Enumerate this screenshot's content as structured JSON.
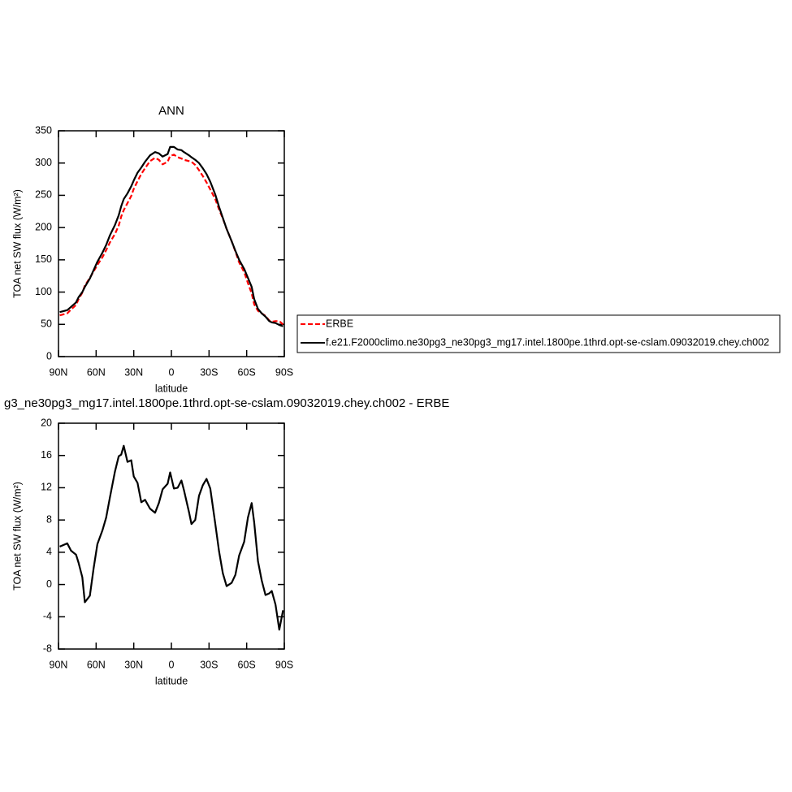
{
  "chart_data": [
    {
      "type": "line",
      "title": "ANN",
      "x_label": "latitude",
      "y_label": "TOA net SW flux (W/m²)",
      "x": [
        89,
        83,
        80,
        76,
        74,
        71,
        69,
        65,
        62,
        59,
        55,
        52,
        49,
        45,
        42,
        40,
        38,
        35,
        32,
        30,
        27,
        24,
        21,
        17,
        13,
        10,
        7,
        3,
        1,
        -2,
        -5,
        -8,
        -10,
        -14,
        -16,
        -19,
        -22,
        -25,
        -28,
        -31,
        -35,
        -38,
        -41,
        -44,
        -48,
        -51,
        -54,
        -58,
        -61,
        -64,
        -66,
        -69,
        -72,
        -75,
        -78,
        -80,
        -83,
        -86,
        -89
      ],
      "series": [
        {
          "name": "ERBE",
          "color": "#ff0000",
          "style": "dashed",
          "values": [
            64,
            67,
            73,
            80,
            89,
            99,
            110,
            122,
            132,
            142,
            154,
            165,
            177,
            190,
            203,
            217,
            227,
            238,
            249,
            260,
            272,
            283,
            292,
            303,
            308,
            305,
            298,
            302,
            311,
            313,
            309,
            307,
            305,
            303,
            302,
            297,
            289,
            280,
            270,
            259,
            244,
            228,
            214,
            198,
            179,
            163,
            146,
            131,
            114,
            98,
            81,
            71,
            67,
            63,
            56,
            54,
            55,
            55,
            50
          ]
        },
        {
          "name": "f.e21.F2000climo.ne30pg3_ne30pg3_mg17.intel.1800pe.1thrd.opt-se-cslam.09032019.chey.ch002",
          "color": "#000000",
          "style": "solid",
          "values": [
            69,
            72,
            77,
            84,
            92,
            100,
            108,
            121,
            134,
            147,
            161,
            173,
            188,
            204,
            219,
            233,
            244,
            253,
            264,
            273,
            285,
            293,
            302,
            312,
            317,
            315,
            310,
            314,
            325,
            325,
            321,
            320,
            317,
            312,
            309,
            305,
            300,
            292,
            283,
            271,
            251,
            232,
            215,
            198,
            179,
            164,
            150,
            136,
            122,
            108,
            89,
            74,
            67,
            62,
            55,
            53,
            52,
            49,
            47
          ]
        }
      ],
      "xlim": [
        90,
        -90
      ],
      "xticks": [
        {
          "value": 90,
          "label": "90N"
        },
        {
          "value": 60,
          "label": "60N"
        },
        {
          "value": 30,
          "label": "30N"
        },
        0,
        {
          "value": -30,
          "label": "30S"
        },
        {
          "value": -60,
          "label": "60S"
        },
        {
          "value": -90,
          "label": "90S"
        }
      ],
      "ylim": [
        0,
        350
      ],
      "yticks": [
        0,
        50,
        100,
        150,
        200,
        250,
        300,
        350
      ]
    },
    {
      "type": "line",
      "title": "g3_ne30pg3_mg17.intel.1800pe.1thrd.opt-se-cslam.09032019.chey.ch002 - ERBE",
      "x_label": "latitude",
      "y_label": "TOA net SW flux (W/m²)",
      "x": [
        89,
        83,
        80,
        76,
        74,
        71,
        69,
        65,
        62,
        59,
        55,
        52,
        49,
        45,
        42,
        40,
        38,
        35,
        32,
        30,
        27,
        24,
        21,
        17,
        13,
        10,
        7,
        3,
        1,
        -2,
        -5,
        -8,
        -10,
        -14,
        -16,
        -19,
        -22,
        -25,
        -28,
        -31,
        -35,
        -38,
        -41,
        -44,
        -48,
        -51,
        -54,
        -58,
        -61,
        -64,
        -66,
        -69,
        -72,
        -75,
        -78,
        -80,
        -83,
        -86,
        -89
      ],
      "series": [
        {
          "color": "#000000",
          "style": "solid",
          "values": [
            4.7,
            5.1,
            4.2,
            3.7,
            2.7,
            0.9,
            -2.2,
            -1.4,
            2.0,
            5.0,
            6.7,
            8.3,
            10.8,
            14,
            15.9,
            16.1,
            17.2,
            15.2,
            15.4,
            13.4,
            12.6,
            10.2,
            10.5,
            9.4,
            8.9,
            10.1,
            11.8,
            12.5,
            13.9,
            11.9,
            12.0,
            12.9,
            11.7,
            9.0,
            7.5,
            8.0,
            11.0,
            12.3,
            13.1,
            11.9,
            7.5,
            4.1,
            1.4,
            -0.2,
            0.2,
            1.2,
            3.6,
            5.3,
            8.3,
            10.1,
            7.7,
            2.9,
            0.5,
            -1.3,
            -1.1,
            -0.8,
            -2.5,
            -5.6,
            -3.2
          ]
        }
      ],
      "xlim": [
        90,
        -90
      ],
      "xticks": [
        {
          "value": 90,
          "label": "90N"
        },
        {
          "value": 60,
          "label": "60N"
        },
        {
          "value": 30,
          "label": "30N"
        },
        0,
        {
          "value": -30,
          "label": "30S"
        },
        {
          "value": -60,
          "label": "60S"
        },
        {
          "value": -90,
          "label": "90S"
        }
      ],
      "ylim": [
        -8,
        20
      ],
      "yticks": [
        -8,
        -4,
        0,
        4,
        8,
        12,
        16,
        20
      ]
    }
  ]
}
